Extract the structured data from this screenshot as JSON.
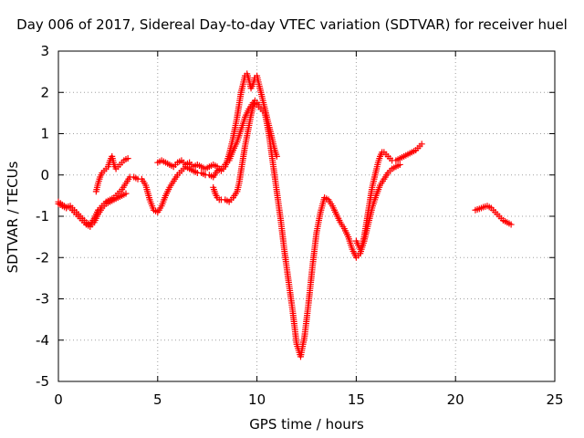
{
  "chart_data": {
    "type": "scatter",
    "title": "Day 006 of 2017, Sidereal Day-to-day VTEC variation (SDTVAR) for receiver huel",
    "xlabel": "GPS time / hours",
    "ylabel": "SDTVAR / TECUs",
    "xlim": [
      0,
      25
    ],
    "ylim": [
      -5,
      3
    ],
    "x_ticks": [
      "0",
      "5",
      "10",
      "15",
      "20",
      "25"
    ],
    "y_ticks": [
      "-5",
      "-4",
      "-3",
      "-2",
      "-1",
      "0",
      "1",
      "2",
      "3"
    ],
    "grid": true,
    "marker": "+",
    "color": "#ff0000",
    "series": [
      {
        "x": [
          0.0,
          0.2,
          0.4,
          0.6,
          0.8,
          1.0,
          1.2,
          1.4,
          1.6,
          1.8,
          2.0,
          2.2,
          2.4,
          2.6,
          2.8,
          3.0,
          3.2,
          3.4,
          3.6,
          3.8,
          4.0,
          4.2,
          4.4,
          4.6,
          4.8,
          5.0,
          5.2,
          5.4,
          5.6,
          5.8,
          6.0,
          6.2,
          6.4,
          6.6,
          6.8,
          7.0,
          7.2,
          7.4,
          7.6,
          7.8,
          8.0,
          8.2,
          8.4,
          8.6,
          8.8,
          9.0,
          9.2,
          9.4,
          9.6,
          9.8,
          10.0,
          10.2,
          10.4,
          10.6,
          10.8,
          11.0,
          11.2,
          11.4,
          11.6,
          11.8,
          12.0,
          12.2,
          12.4,
          12.6,
          12.8,
          13.0,
          13.2,
          13.4,
          13.6,
          13.8,
          14.0,
          14.2,
          14.4,
          14.6,
          14.8,
          15.0,
          15.2,
          15.4,
          15.6,
          15.8,
          16.0,
          16.2,
          16.4,
          16.6,
          16.8,
          17.0,
          17.2
        ],
        "y": [
          -0.65,
          -0.72,
          -0.78,
          -0.75,
          -0.85,
          -0.95,
          -1.05,
          -1.15,
          -1.2,
          -1.05,
          -0.85,
          -0.75,
          -0.65,
          -0.6,
          -0.55,
          -0.45,
          -0.35,
          -0.2,
          -0.05,
          -0.05,
          -0.1,
          -0.1,
          -0.25,
          -0.6,
          -0.85,
          -0.9,
          -0.75,
          -0.5,
          -0.3,
          -0.15,
          0.0,
          0.1,
          0.2,
          0.15,
          0.1,
          0.05,
          0.05,
          0.0,
          0.0,
          -0.05,
          0.1,
          0.15,
          0.25,
          0.35,
          0.6,
          0.8,
          1.1,
          1.4,
          1.6,
          1.75,
          1.7,
          1.6,
          1.5,
          1.0,
          0.3,
          -0.4,
          -1.1,
          -1.9,
          -2.6,
          -3.3,
          -4.1,
          -4.4,
          -3.9,
          -3.1,
          -2.2,
          -1.4,
          -0.9,
          -0.55,
          -0.6,
          -0.75,
          -0.95,
          -1.15,
          -1.3,
          -1.5,
          -1.8,
          -2.0,
          -1.9,
          -1.6,
          -1.2,
          -0.8,
          -0.5,
          -0.25,
          -0.1,
          0.05,
          0.15,
          0.2,
          0.25
        ]
      },
      {
        "x": [
          0.0,
          0.2,
          0.4,
          0.6,
          0.8,
          1.0,
          1.2,
          1.4,
          1.6,
          1.8,
          2.0,
          2.2,
          2.4,
          2.6,
          2.8,
          3.0,
          3.2,
          3.4
        ],
        "y": [
          -0.7,
          -0.75,
          -0.8,
          -0.8,
          -0.9,
          -1.0,
          -1.1,
          -1.2,
          -1.25,
          -1.15,
          -0.95,
          -0.8,
          -0.7,
          -0.65,
          -0.6,
          -0.55,
          -0.5,
          -0.45
        ]
      },
      {
        "x": [
          1.9,
          2.0,
          2.1,
          2.2,
          2.3,
          2.4,
          2.5,
          2.6,
          2.7,
          2.8,
          2.9,
          3.0,
          3.1,
          3.2,
          3.3,
          3.4,
          3.5
        ],
        "y": [
          -0.4,
          -0.2,
          -0.05,
          0.05,
          0.1,
          0.15,
          0.2,
          0.35,
          0.45,
          0.25,
          0.15,
          0.2,
          0.25,
          0.3,
          0.35,
          0.38,
          0.4
        ]
      },
      {
        "x": [
          5.0,
          5.2,
          5.4,
          5.6,
          5.8,
          6.0,
          6.2,
          6.4,
          6.6,
          6.8,
          7.0,
          7.2,
          7.4,
          7.6,
          7.8,
          8.0,
          8.2,
          8.4,
          8.6,
          8.8,
          9.0,
          9.1,
          9.2,
          9.3,
          9.4,
          9.5,
          9.6,
          9.7,
          9.8,
          9.9,
          10.0,
          10.1,
          10.2,
          10.3,
          10.4,
          10.5,
          10.6,
          10.7,
          10.8,
          10.9,
          11.0
        ],
        "y": [
          0.3,
          0.35,
          0.3,
          0.25,
          0.2,
          0.3,
          0.35,
          0.25,
          0.3,
          0.2,
          0.25,
          0.2,
          0.15,
          0.2,
          0.25,
          0.2,
          0.1,
          0.2,
          0.5,
          0.9,
          1.4,
          1.7,
          2.0,
          2.2,
          2.4,
          2.45,
          2.3,
          2.1,
          2.2,
          2.35,
          2.4,
          2.2,
          2.0,
          1.8,
          1.6,
          1.4,
          1.2,
          1.0,
          0.8,
          0.6,
          0.45
        ]
      },
      {
        "x": [
          7.8,
          7.9,
          8.0,
          8.1,
          8.2,
          8.4,
          8.6,
          8.8,
          9.0,
          9.1,
          9.2,
          9.3,
          9.4,
          9.5,
          9.6,
          9.7,
          9.8,
          9.9,
          10.0,
          10.1
        ],
        "y": [
          -0.3,
          -0.45,
          -0.55,
          -0.6,
          -0.6,
          -0.6,
          -0.65,
          -0.55,
          -0.4,
          -0.2,
          0.1,
          0.4,
          0.7,
          0.95,
          1.2,
          1.45,
          1.65,
          1.8,
          1.75,
          1.7
        ]
      },
      {
        "x": [
          15.0,
          15.1,
          15.2,
          15.3,
          15.4,
          15.5,
          15.6,
          15.7,
          15.8,
          15.9,
          16.0,
          16.1,
          16.2,
          16.3,
          16.4,
          16.6,
          16.8,
          17.0,
          17.2,
          17.4,
          17.6,
          17.8,
          18.0,
          18.2,
          18.3
        ],
        "y": [
          -1.6,
          -1.7,
          -1.8,
          -1.7,
          -1.5,
          -1.2,
          -0.9,
          -0.6,
          -0.3,
          -0.1,
          0.1,
          0.3,
          0.45,
          0.55,
          0.55,
          0.45,
          0.35,
          0.35,
          0.4,
          0.45,
          0.5,
          0.55,
          0.6,
          0.7,
          0.75
        ]
      },
      {
        "x": [
          21.0,
          21.2,
          21.4,
          21.6,
          21.8,
          22.0,
          22.2,
          22.4,
          22.6,
          22.8
        ],
        "y": [
          -0.85,
          -0.82,
          -0.78,
          -0.75,
          -0.8,
          -0.9,
          -1.0,
          -1.1,
          -1.15,
          -1.2
        ]
      }
    ]
  }
}
